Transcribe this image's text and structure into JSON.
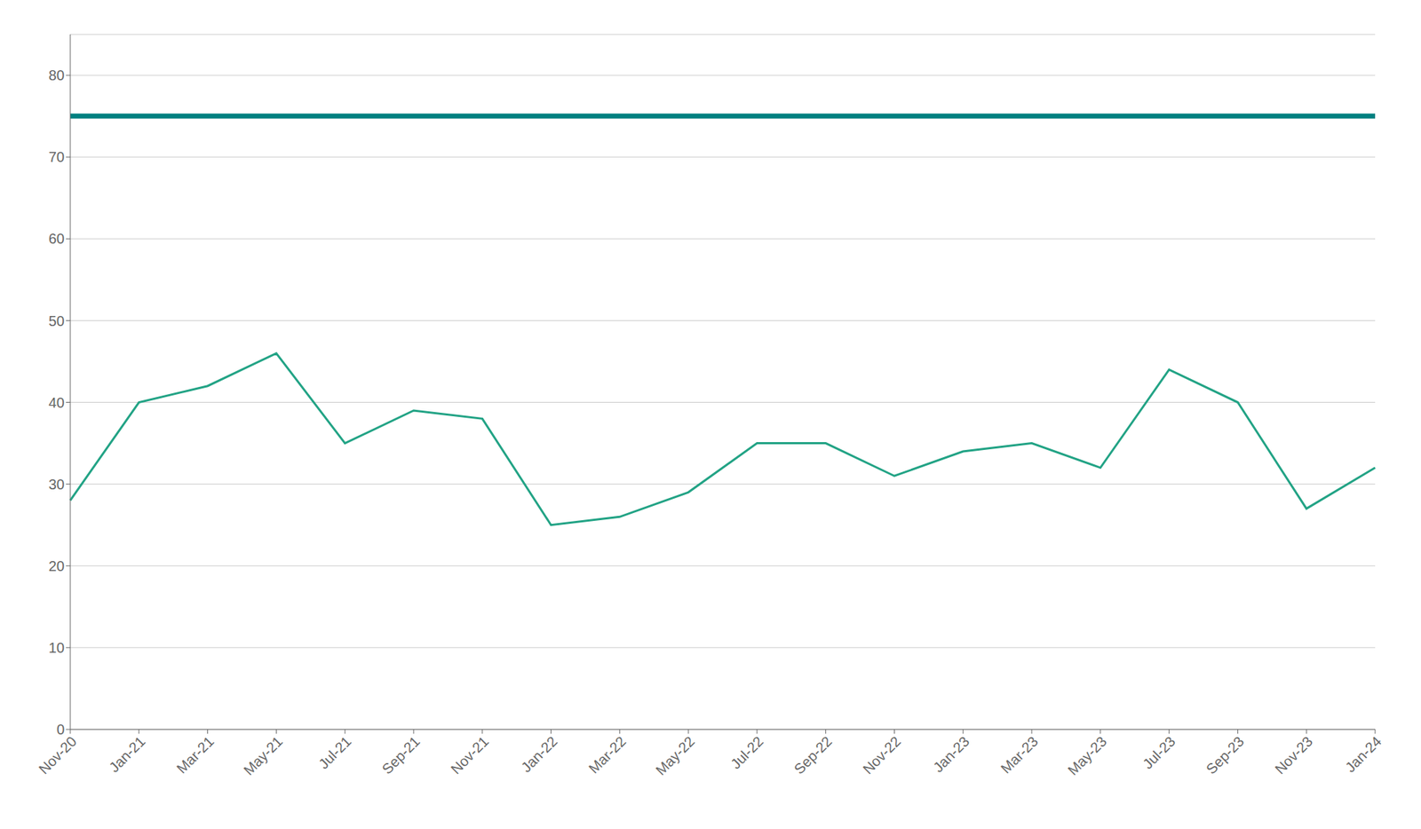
{
  "chart_data": {
    "type": "line",
    "categories": [
      "Nov-20",
      "Jan-21",
      "Mar-21",
      "May-21",
      "Jul-21",
      "Sep-21",
      "Nov-21",
      "Jan-22",
      "Mar-22",
      "May-22",
      "Jul-22",
      "Sep-22",
      "Nov-22",
      "Jan-23",
      "Mar-23",
      "May-23",
      "Jul-23",
      "Sep-23",
      "Nov-23",
      "Jan-24"
    ],
    "values": [
      28,
      40,
      42,
      46,
      35,
      39,
      38,
      25,
      26,
      29,
      35,
      35,
      31,
      34,
      35,
      32,
      44,
      40,
      27,
      32
    ],
    "color": "#22a385",
    "threshold": {
      "value": 75,
      "color": "#008080"
    },
    "ylim": [
      0,
      85
    ],
    "yticks": [
      0,
      10,
      20,
      30,
      40,
      50,
      60,
      70,
      80
    ],
    "grid": true
  }
}
